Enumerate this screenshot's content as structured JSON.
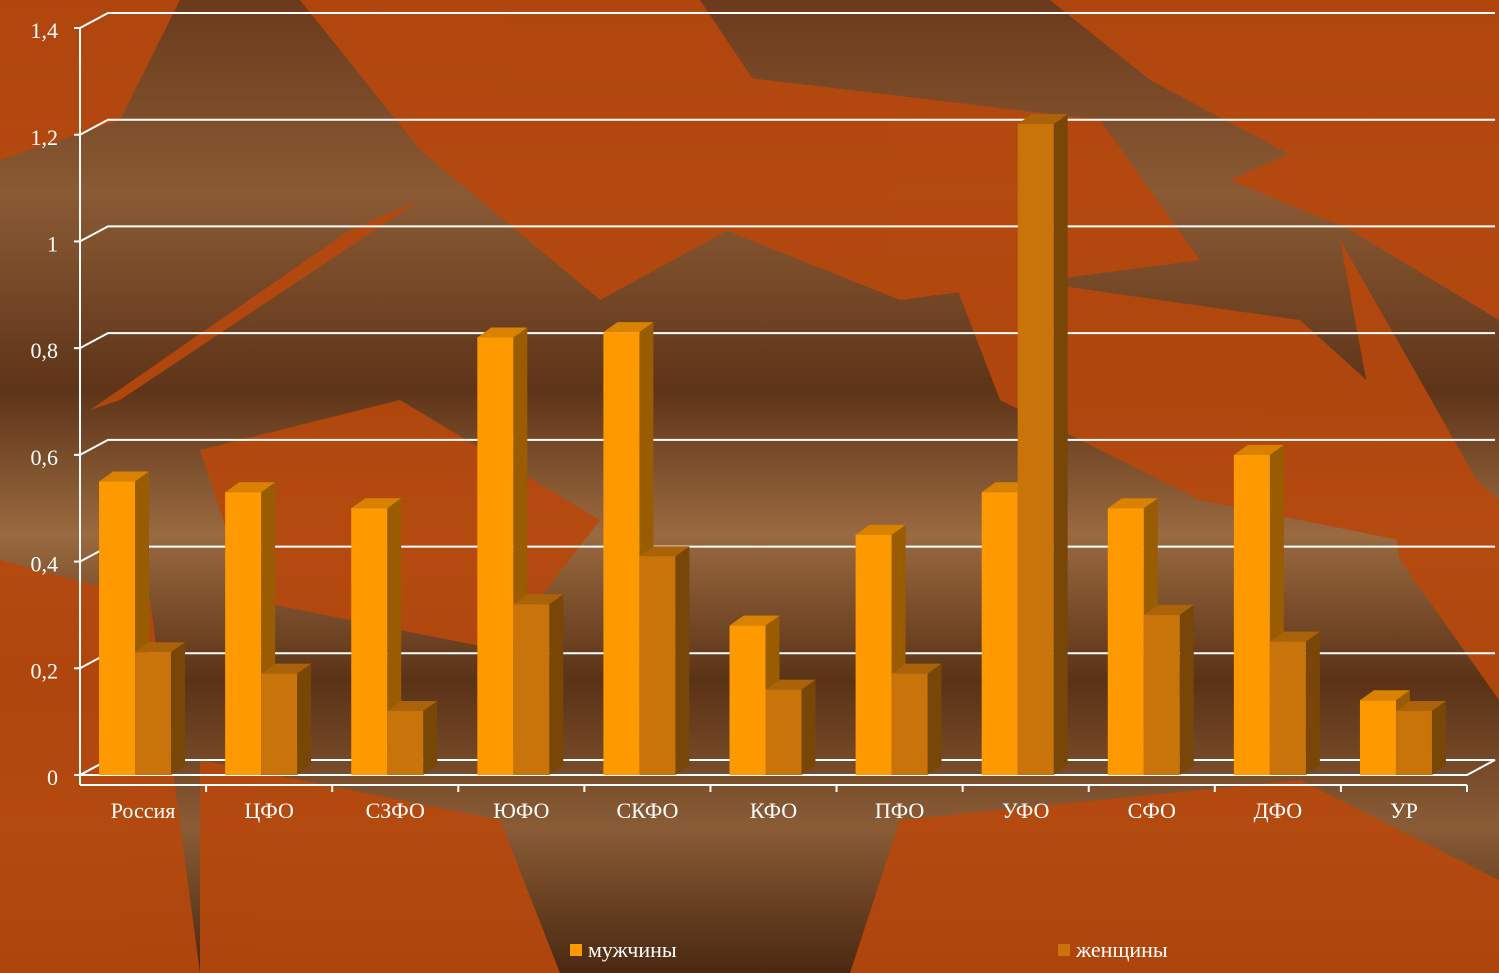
{
  "chart_data": {
    "type": "bar3d",
    "categories": [
      "Россия",
      "ЦФО",
      "СЗФО",
      "ЮФО",
      "СКФО",
      "КФО",
      "ПФО",
      "УФО",
      "СФО",
      "ДФО",
      "УР"
    ],
    "series": [
      {
        "name": "мужчины",
        "color": "#ff9900",
        "values": [
          0.55,
          0.53,
          0.5,
          0.82,
          0.83,
          0.28,
          0.45,
          0.53,
          0.5,
          0.6,
          0.14
        ]
      },
      {
        "name": "женщины",
        "color": "#c8740a",
        "values": [
          0.23,
          0.19,
          0.12,
          0.32,
          0.41,
          0.16,
          0.19,
          1.22,
          0.3,
          0.25,
          0.12
        ]
      }
    ],
    "ylim": [
      0,
      1.4
    ],
    "yticks": [
      0,
      {
        "value": 0.2,
        "label": "0,2"
      },
      {
        "value": 0.4,
        "label": "0,4"
      },
      {
        "value": 0.6,
        "label": "0,6"
      },
      {
        "value": 0.8,
        "label": "0,8"
      },
      1,
      {
        "value": 1.2,
        "label": "1,2"
      },
      {
        "value": 1.4,
        "label": "1,4"
      }
    ],
    "grid": true,
    "legend": "bottom"
  }
}
